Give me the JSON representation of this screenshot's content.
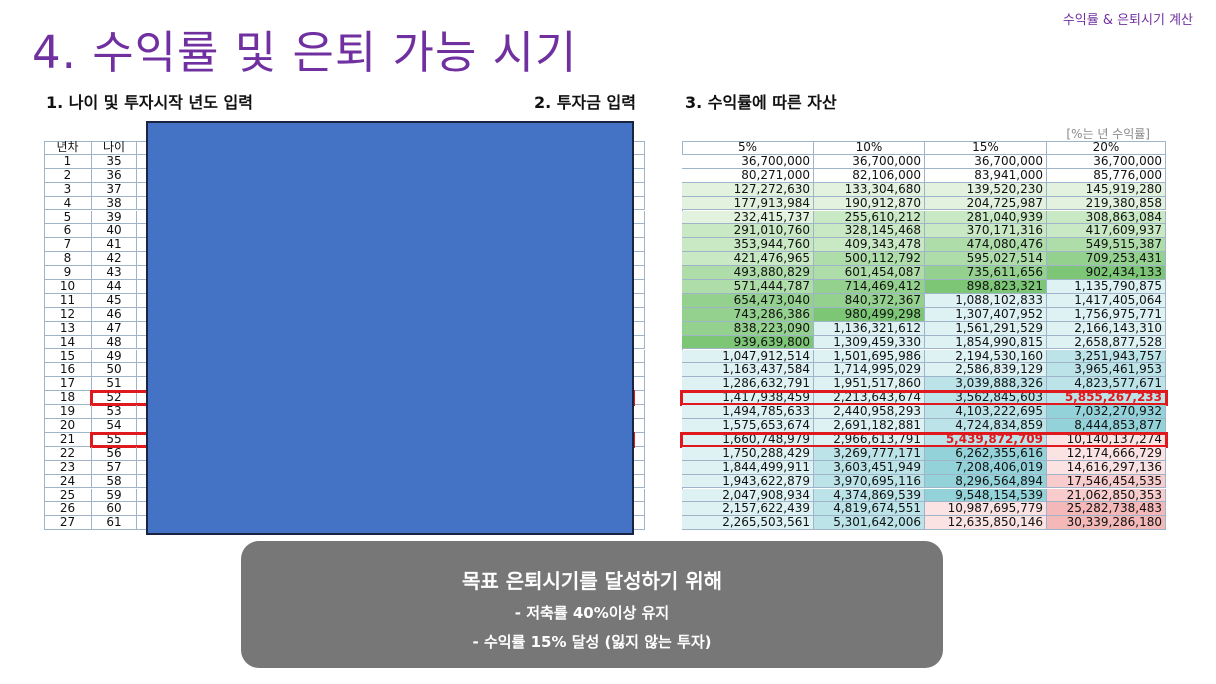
{
  "header": {
    "caption": "수익률 & 은퇴시기 계산",
    "title": "4. 수익률 및 은퇴 가능 시기"
  },
  "sections": [
    "1. 나이 및 투자시작 년도 입력",
    "2. 투자금 입력",
    "3. 수익률에 따른 자산"
  ],
  "table": {
    "note": "[%는 년 수익률]",
    "left_headers": [
      "년차",
      "나이"
    ],
    "rate_headers": [
      "5%",
      "10%",
      "15%",
      "20%"
    ],
    "rows": [
      {
        "year": "1",
        "age": "35",
        "values": [
          "36,700,000",
          "36,700,000",
          "36,700,000",
          "36,700,000"
        ],
        "colors": [
          "#ffffff",
          "#ffffff",
          "#ffffff",
          "#ffffff"
        ]
      },
      {
        "year": "2",
        "age": "36",
        "values": [
          "80,271,000",
          "82,106,000",
          "83,941,000",
          "85,776,000"
        ],
        "colors": [
          "#ffffff",
          "#ffffff",
          "#ffffff",
          "#ffffff"
        ]
      },
      {
        "year": "3",
        "age": "37",
        "values": [
          "127,272,630",
          "133,304,680",
          "139,520,230",
          "145,919,280"
        ],
        "colors": [
          "#e2f2df",
          "#e2f2df",
          "#e2f2df",
          "#e2f2df"
        ]
      },
      {
        "year": "4",
        "age": "38",
        "values": [
          "177,913,984",
          "190,912,870",
          "204,725,987",
          "219,380,858"
        ],
        "colors": [
          "#e2f2df",
          "#e2f2df",
          "#e2f2df",
          "#e2f2df"
        ]
      },
      {
        "year": "5",
        "age": "39",
        "values": [
          "232,415,737",
          "255,610,212",
          "281,040,939",
          "308,863,084"
        ],
        "colors": [
          "#e2f2df",
          "#c9e8c4",
          "#c9e8c4",
          "#c9e8c4"
        ]
      },
      {
        "year": "6",
        "age": "40",
        "values": [
          "291,010,760",
          "328,145,468",
          "370,171,316",
          "417,609,937"
        ],
        "colors": [
          "#c9e8c4",
          "#c9e8c4",
          "#c9e8c4",
          "#c9e8c4"
        ]
      },
      {
        "year": "7",
        "age": "41",
        "values": [
          "353,944,760",
          "409,343,478",
          "474,080,476",
          "549,515,387"
        ],
        "colors": [
          "#c9e8c4",
          "#c9e8c4",
          "#afdda9",
          "#afdda9"
        ]
      },
      {
        "year": "8",
        "age": "42",
        "values": [
          "421,476,965",
          "500,112,792",
          "595,027,514",
          "709,253,431"
        ],
        "colors": [
          "#c9e8c4",
          "#afdda9",
          "#afdda9",
          "#95d18e"
        ]
      },
      {
        "year": "9",
        "age": "43",
        "values": [
          "493,880,829",
          "601,454,087",
          "735,611,656",
          "902,434,133"
        ],
        "colors": [
          "#afdda9",
          "#afdda9",
          "#95d18e",
          "#7cc675"
        ]
      },
      {
        "year": "10",
        "age": "44",
        "values": [
          "571,444,787",
          "714,469,412",
          "898,823,321",
          "1,135,790,875"
        ],
        "colors": [
          "#afdda9",
          "#95d18e",
          "#7cc675",
          "#def2f3"
        ]
      },
      {
        "year": "11",
        "age": "45",
        "values": [
          "654,473,040",
          "840,372,367",
          "1,088,102,833",
          "1,417,405,064"
        ],
        "colors": [
          "#95d18e",
          "#95d18e",
          "#def2f3",
          "#def2f3"
        ]
      },
      {
        "year": "12",
        "age": "46",
        "values": [
          "743,286,386",
          "980,499,298",
          "1,307,407,952",
          "1,756,975,771"
        ],
        "colors": [
          "#95d18e",
          "#7cc675",
          "#def2f3",
          "#def2f3"
        ]
      },
      {
        "year": "13",
        "age": "47",
        "values": [
          "838,223,090",
          "1,136,321,612",
          "1,561,291,529",
          "2,166,143,310"
        ],
        "colors": [
          "#95d18e",
          "#def2f3",
          "#def2f3",
          "#def2f3"
        ]
      },
      {
        "year": "14",
        "age": "48",
        "values": [
          "939,639,800",
          "1,309,459,330",
          "1,854,990,815",
          "2,658,877,528"
        ],
        "colors": [
          "#7cc675",
          "#def2f3",
          "#def2f3",
          "#def2f3"
        ]
      },
      {
        "year": "15",
        "age": "49",
        "values": [
          "1,047,912,514",
          "1,501,695,986",
          "2,194,530,160",
          "3,251,943,757"
        ],
        "colors": [
          "#def2f3",
          "#def2f3",
          "#def2f3",
          "#bce4e8"
        ]
      },
      {
        "year": "16",
        "age": "50",
        "values": [
          "1,163,437,584",
          "1,714,995,029",
          "2,586,839,129",
          "3,965,461,953"
        ],
        "colors": [
          "#def2f3",
          "#def2f3",
          "#def2f3",
          "#bce4e8"
        ]
      },
      {
        "year": "17",
        "age": "51",
        "values": [
          "1,286,632,791",
          "1,951,517,860",
          "3,039,888,326",
          "4,823,577,671"
        ],
        "colors": [
          "#def2f3",
          "#def2f3",
          "#bce4e8",
          "#bce4e8"
        ]
      },
      {
        "year": "18",
        "age": "52",
        "values": [
          "1,417,938,459",
          "2,213,643,674",
          "3,562,845,603",
          "5,855,267,233"
        ],
        "colors": [
          "#def2f3",
          "#def2f3",
          "#bce4e8",
          "#bce4e8"
        ],
        "highlight": true,
        "red_cell": 3
      },
      {
        "year": "19",
        "age": "53",
        "values": [
          "1,494,785,633",
          "2,440,958,293",
          "4,103,222,695",
          "7,032,270,932"
        ],
        "colors": [
          "#def2f3",
          "#def2f3",
          "#bce4e8",
          "#93d2d9"
        ]
      },
      {
        "year": "20",
        "age": "54",
        "values": [
          "1,575,653,674",
          "2,691,182,881",
          "4,724,834,859",
          "8,444,853,877"
        ],
        "colors": [
          "#def2f3",
          "#def2f3",
          "#bce4e8",
          "#93d2d9"
        ]
      },
      {
        "year": "21",
        "age": "55",
        "values": [
          "1,660,748,979",
          "2,966,613,791",
          "5,439,872,709",
          "10,140,137,274"
        ],
        "colors": [
          "#def2f3",
          "#def2f3",
          "#bce4e8",
          "#fbe3e3"
        ],
        "highlight": true,
        "red_cell": 2
      },
      {
        "year": "22",
        "age": "56",
        "values": [
          "1,750,288,429",
          "3,269,777,171",
          "6,262,355,616",
          "12,174,666,729"
        ],
        "colors": [
          "#def2f3",
          "#bce4e8",
          "#93d2d9",
          "#fbe3e3"
        ]
      },
      {
        "year": "23",
        "age": "57",
        "values": [
          "1,844,499,911",
          "3,603,451,949",
          "7,208,406,019",
          "14,616,297,136"
        ],
        "colors": [
          "#def2f3",
          "#bce4e8",
          "#93d2d9",
          "#fbe3e3"
        ]
      },
      {
        "year": "24",
        "age": "58",
        "values": [
          "1,943,622,879",
          "3,970,695,116",
          "8,296,564,894",
          "17,546,454,535"
        ],
        "colors": [
          "#def2f3",
          "#bce4e8",
          "#93d2d9",
          "#f8cccc"
        ]
      },
      {
        "year": "25",
        "age": "59",
        "values": [
          "2,047,908,934",
          "4,374,869,539",
          "9,548,154,539",
          "21,062,850,353"
        ],
        "colors": [
          "#def2f3",
          "#bce4e8",
          "#93d2d9",
          "#f8cccc"
        ]
      },
      {
        "year": "26",
        "age": "60",
        "values": [
          "2,157,622,439",
          "4,819,674,551",
          "10,987,695,779",
          "25,282,738,483"
        ],
        "colors": [
          "#def2f3",
          "#bce4e8",
          "#fbe3e3",
          "#f5b8b8"
        ]
      },
      {
        "year": "27",
        "age": "61",
        "values": [
          "2,265,503,561",
          "5,301,642,006",
          "12,635,850,146",
          "30,339,286,180"
        ],
        "colors": [
          "#def2f3",
          "#bce4e8",
          "#fbe3e3",
          "#f5b8b8"
        ]
      }
    ]
  },
  "callout": {
    "heading": "목표 은퇴시기를 달성하기 위해",
    "items": [
      "- 저축률 40%이상 유지",
      "- 수익률 15% 달성 (잃지 않는 투자)"
    ]
  }
}
